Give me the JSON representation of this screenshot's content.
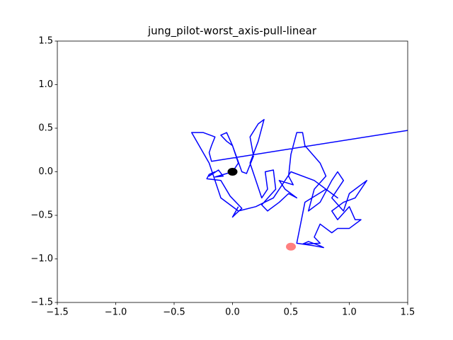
{
  "chart_data": {
    "type": "line",
    "title": "jung_pilot-worst_axis-pull-linear",
    "xlim": [
      -1.5,
      1.5
    ],
    "ylim": [
      -1.5,
      1.5
    ],
    "xticks": [
      {
        "value": -1.5,
        "label": "−1.5"
      },
      {
        "value": -1.0,
        "label": "−1.0"
      },
      {
        "value": -0.5,
        "label": "−0.5"
      },
      {
        "value": 0,
        "label": "0.0"
      },
      0.5,
      {
        "value": 1.0,
        "label": "1.0"
      },
      1.5
    ],
    "yticks": [
      {
        "value": -1.5,
        "label": "−1.5"
      },
      {
        "value": -1.0,
        "label": "−1.0"
      },
      {
        "value": -0.5,
        "label": "−0.5"
      },
      {
        "value": 0,
        "label": "0.0"
      },
      0.5,
      {
        "value": 1.0,
        "label": "1.0"
      },
      1.5
    ],
    "series": [
      {
        "color": "#0000ff",
        "x": [
          0.05,
          0.0,
          0.03,
          0.08,
          -0.02,
          -0.1,
          -0.22,
          -0.2,
          -0.15,
          -0.2,
          -0.12,
          -0.08,
          -0.15,
          0.0,
          0.05,
          0.0,
          -0.05,
          -0.1,
          -0.05,
          0.0,
          0.08,
          0.12,
          0.18,
          0.15,
          0.22,
          0.27,
          0.22,
          0.15,
          0.2,
          0.25,
          0.3,
          0.28,
          0.35,
          0.37,
          0.25,
          0.3,
          0.4,
          0.48,
          0.55,
          0.45,
          0.4,
          0.52,
          0.48,
          0.5,
          0.55,
          0.6,
          0.62,
          0.75,
          0.8,
          0.7,
          0.65,
          0.75,
          0.85,
          0.9,
          0.95,
          0.85,
          0.95,
          1.0,
          1.1,
          1.15,
          1.05,
          0.95,
          0.85,
          0.9,
          1.0,
          1.05,
          1.1,
          1.0,
          0.9,
          0.85,
          0.75,
          0.7,
          0.75,
          0.6,
          0.65,
          0.75,
          0.78,
          0.7,
          0.55,
          0.62,
          0.8,
          0.9,
          0.7,
          0.5,
          0.35,
          0.2,
          0.05,
          -0.1,
          -0.2,
          -0.35,
          -0.25,
          -0.15,
          -0.18,
          -0.2,
          -0.18,
          1.5
        ],
        "values": [
          -0.4,
          -0.52,
          -0.48,
          -0.42,
          -0.28,
          -0.1,
          -0.08,
          -0.03,
          0.0,
          -0.05,
          0.02,
          -0.05,
          -0.06,
          0.0,
          0.1,
          0.3,
          0.45,
          0.42,
          0.35,
          0.3,
          0.0,
          -0.02,
          0.18,
          0.4,
          0.55,
          0.6,
          0.35,
          0.1,
          -0.1,
          -0.3,
          -0.2,
          0.0,
          0.02,
          -0.2,
          -0.38,
          -0.45,
          -0.35,
          -0.25,
          -0.3,
          -0.2,
          -0.1,
          -0.15,
          -0.05,
          0.2,
          0.45,
          0.45,
          0.3,
          0.1,
          -0.05,
          -0.2,
          -0.45,
          -0.35,
          -0.1,
          0.0,
          -0.1,
          -0.3,
          -0.45,
          -0.25,
          -0.15,
          -0.1,
          -0.3,
          -0.35,
          -0.45,
          -0.55,
          -0.4,
          -0.55,
          -0.55,
          -0.65,
          -0.65,
          -0.7,
          -0.6,
          -0.75,
          -0.82,
          -0.83,
          -0.8,
          -0.85,
          -0.87,
          -0.85,
          -0.82,
          -0.35,
          -0.2,
          -0.3,
          -0.1,
          0.0,
          -0.3,
          -0.4,
          -0.45,
          -0.3,
          0.1,
          0.45,
          0.45,
          0.4,
          0.3,
          0.22,
          0.12,
          0.475
        ]
      }
    ],
    "points": [
      {
        "x": 0,
        "y": 0,
        "color": "#000000",
        "alpha": 1
      },
      {
        "x": 0.5,
        "y": -0.86,
        "color": "#ff0000",
        "alpha": 0.5
      }
    ]
  }
}
